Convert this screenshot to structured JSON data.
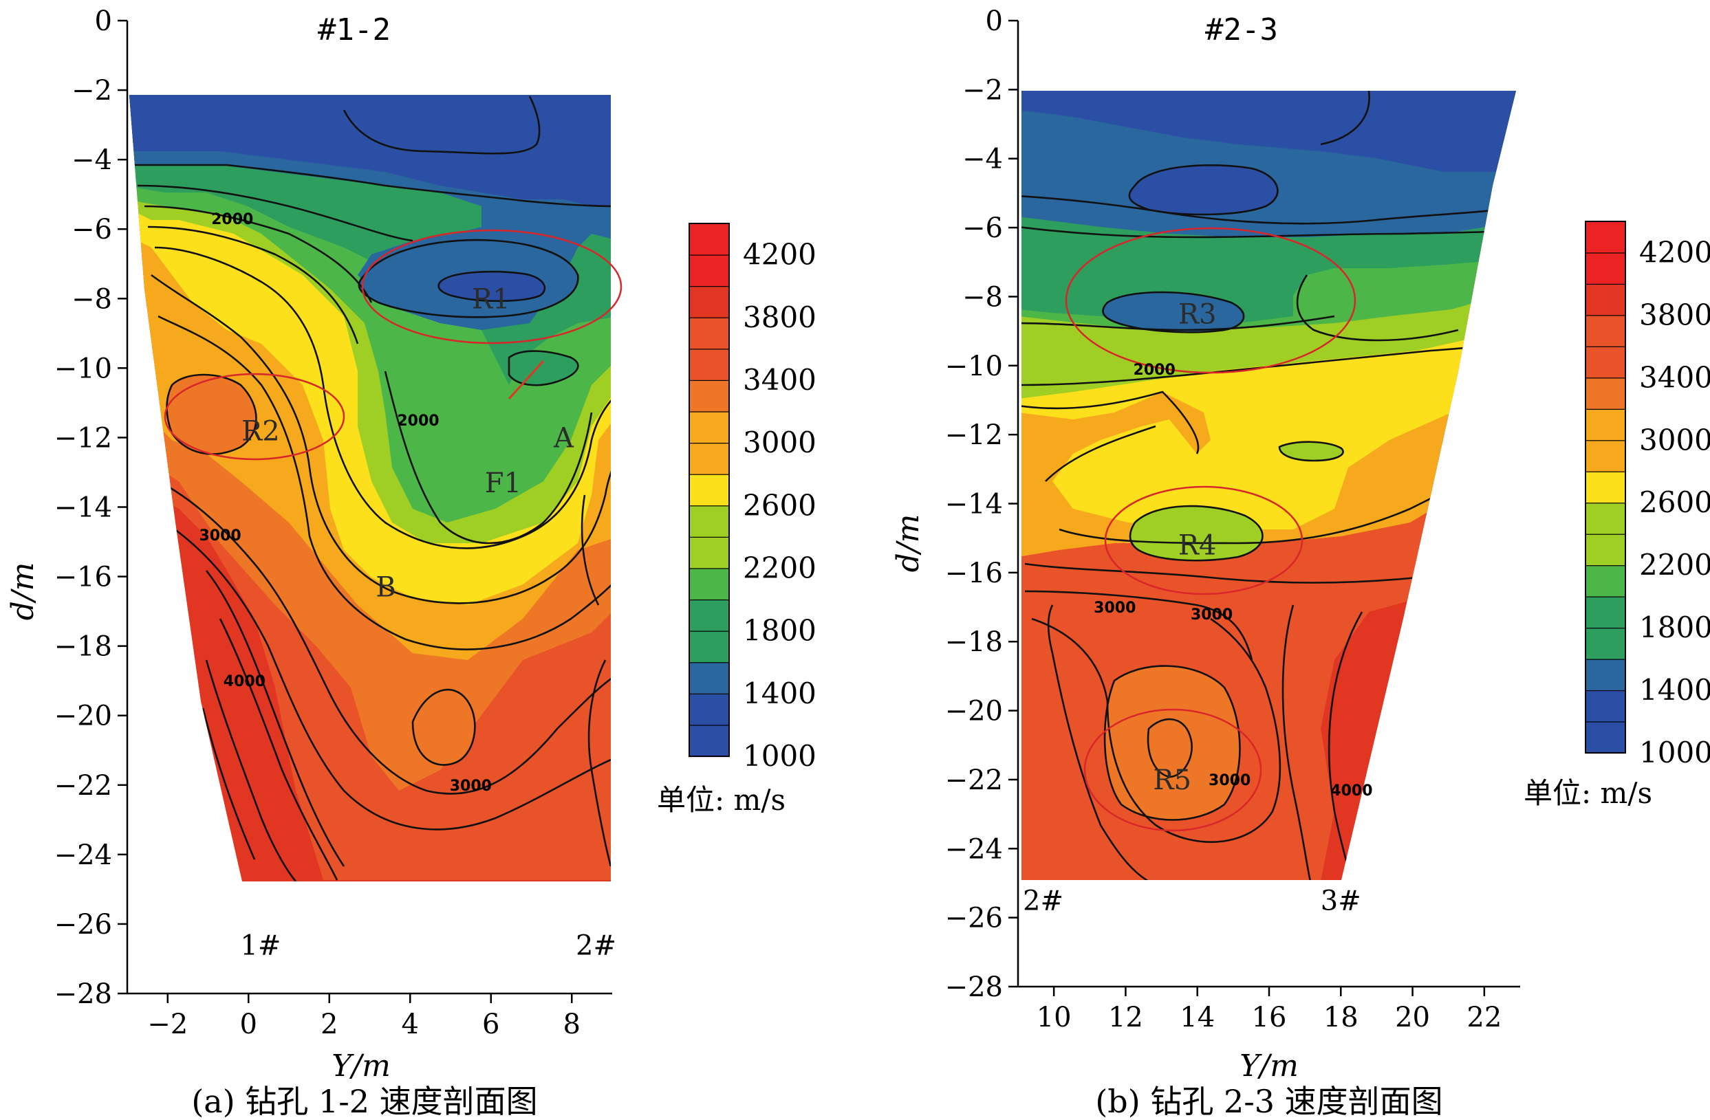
{
  "chart_data": [
    {
      "type": "heatmap",
      "title": "#1-2",
      "caption": "(a) 钻孔 1-2 速度剖面图",
      "xlabel": "Y/m",
      "ylabel": "d/m",
      "xlim": [
        -3,
        9
      ],
      "ylim": [
        -28,
        0
      ],
      "x_ticks": [
        -2,
        0,
        2,
        4,
        6,
        8
      ],
      "y_ticks": [
        0,
        -2,
        -4,
        -6,
        -8,
        -10,
        -12,
        -14,
        -16,
        -18,
        -20,
        -22,
        -24,
        -26,
        -28
      ],
      "colorbar": {
        "values": [
          1000,
          1400,
          1800,
          2200,
          2600,
          3000,
          3400,
          3800,
          4200
        ],
        "min": 1000,
        "max": 4400,
        "unit": "单位: m/s"
      },
      "borehole_labels": [
        {
          "text": "1#",
          "x": 0.3,
          "y": -26.6
        },
        {
          "text": "2#",
          "x": 8.6,
          "y": -26.6
        }
      ],
      "zone_labels": [
        {
          "text": "R1",
          "x": 6.0,
          "y": -8.0
        },
        {
          "text": "R2",
          "x": 0.3,
          "y": -11.8
        },
        {
          "text": "A",
          "x": 7.8,
          "y": -12.0
        },
        {
          "text": "F1",
          "x": 6.3,
          "y": -13.3
        },
        {
          "text": "B",
          "x": 3.4,
          "y": -16.3
        }
      ],
      "contour_value_labels": [
        {
          "text": "2000",
          "x": -0.4,
          "y": -5.7
        },
        {
          "text": "2000",
          "x": 4.2,
          "y": -11.5
        },
        {
          "text": "3000",
          "x": -0.7,
          "y": -14.8
        },
        {
          "text": "4000",
          "x": -0.1,
          "y": -19.0
        },
        {
          "text": "3000",
          "x": 5.5,
          "y": -22.0
        }
      ]
    },
    {
      "type": "heatmap",
      "title": "#2-3",
      "caption": "(b) 钻孔 2-3 速度剖面图",
      "xlabel": "Y/m",
      "ylabel": "d/m",
      "xlim": [
        9,
        23
      ],
      "ylim": [
        -28,
        0
      ],
      "x_ticks": [
        10,
        12,
        14,
        16,
        18,
        20,
        22
      ],
      "y_ticks": [
        0,
        -2,
        -4,
        -6,
        -8,
        -10,
        -12,
        -14,
        -16,
        -18,
        -20,
        -22,
        -24,
        -26,
        -28
      ],
      "colorbar": {
        "values": [
          1000,
          1400,
          1800,
          2200,
          2600,
          3000,
          3400,
          3800,
          4200
        ],
        "min": 1000,
        "max": 4400,
        "unit": "单位: m/s"
      },
      "borehole_labels": [
        {
          "text": "2#",
          "x": 9.7,
          "y": -25.5
        },
        {
          "text": "3#",
          "x": 18.0,
          "y": -25.5
        }
      ],
      "zone_labels": [
        {
          "text": "R3",
          "x": 14.0,
          "y": -8.5
        },
        {
          "text": "R4",
          "x": 14.0,
          "y": -15.2
        },
        {
          "text": "R5",
          "x": 13.3,
          "y": -22.0
        }
      ],
      "contour_value_labels": [
        {
          "text": "2000",
          "x": 12.8,
          "y": -10.1
        },
        {
          "text": "3000",
          "x": 11.7,
          "y": -17.0
        },
        {
          "text": "3000",
          "x": 14.4,
          "y": -17.2
        },
        {
          "text": "3000",
          "x": 14.9,
          "y": -22.0
        },
        {
          "text": "4000",
          "x": 18.3,
          "y": -22.3
        }
      ]
    }
  ]
}
